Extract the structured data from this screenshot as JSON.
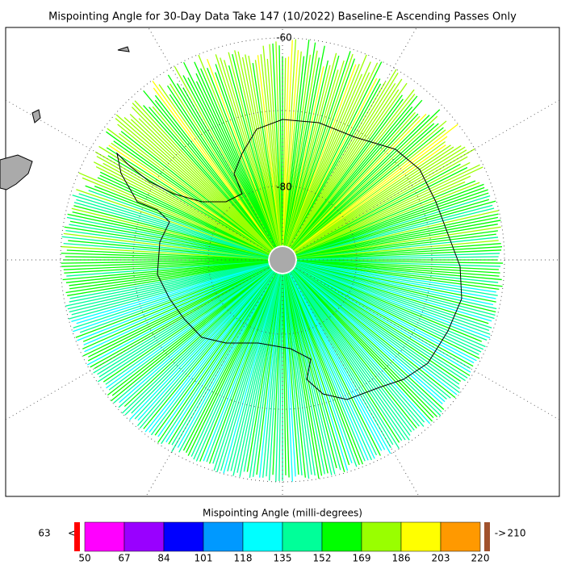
{
  "title": "Mispointing Angle for 30-Day Data Take 147 (10/2022) Baseline-E Ascending Passes Only",
  "map": {
    "lat_labels": [
      "-60",
      "-80"
    ]
  },
  "colorbar": {
    "title": "Mispointing Angle (milli-degrees)",
    "ticks": [
      50,
      67,
      84,
      101,
      118,
      135,
      152,
      169,
      186,
      203,
      220
    ],
    "colors": [
      "#ff00ff",
      "#9900ff",
      "#0000ff",
      "#0099ff",
      "#00ffff",
      "#00ff99",
      "#00ff00",
      "#99ff00",
      "#ffff00",
      "#ff9900"
    ],
    "under": {
      "count": "63",
      "arrow": "<",
      "color": "#ff0000"
    },
    "over": {
      "count": "210",
      "arrow": "->",
      "color": "#a0522d"
    }
  }
}
